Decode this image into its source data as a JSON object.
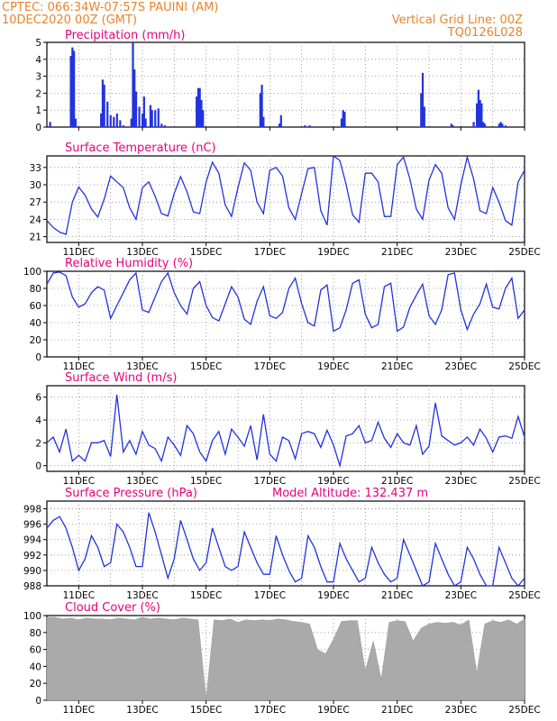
{
  "header": {
    "line1": "CPTEC:   066:34W-07:57S   PAUINI (AM)",
    "line2": "10DEC2020 00Z (GMT)",
    "right1": "Vertical Grid Line: 00Z",
    "right2": "TQ0126L028"
  },
  "model_altitude_label": "Model Altitude: 132.437 m",
  "x_axis": {
    "start_day": 10,
    "end_day": 25,
    "tick_days": [
      11,
      13,
      15,
      17,
      19,
      21,
      23,
      25
    ],
    "tick_labels": [
      "11DEC",
      "13DEC",
      "15DEC",
      "17DEC",
      "19DEC",
      "21DEC",
      "23DEC",
      "25DEC"
    ]
  },
  "colors": {
    "line": "#2233dd",
    "bar": "#2233dd",
    "cloud": "#aaaaaa",
    "header": "#e8832a",
    "title": "#e6007e"
  },
  "chart_data": [
    {
      "type": "bar",
      "title": "Precipitation (mm/h)",
      "ylim": [
        0,
        5
      ],
      "yticks": [
        0,
        1,
        2,
        3,
        4,
        5
      ],
      "x_days": [
        10.1,
        10.75,
        10.8,
        10.85,
        10.9,
        11.7,
        11.75,
        11.8,
        11.9,
        12.0,
        12.1,
        12.2,
        12.3,
        12.4,
        12.65,
        12.7,
        12.75,
        12.8,
        12.9,
        13.0,
        13.05,
        13.1,
        13.25,
        13.3,
        13.4,
        13.5,
        13.6,
        13.7,
        14.7,
        14.75,
        14.8,
        14.85,
        14.9,
        16.7,
        16.75,
        16.8,
        17.3,
        17.35,
        18.1,
        18.25,
        19.25,
        19.3,
        19.35,
        21.75,
        21.8,
        21.85,
        22.7,
        22.75,
        23.4,
        23.5,
        23.55,
        23.6,
        23.65,
        23.7,
        23.75,
        24.2,
        24.25,
        24.3,
        24.4
      ],
      "values": [
        0.3,
        4.2,
        4.7,
        4.5,
        0.5,
        0.8,
        2.8,
        2.5,
        1.5,
        0.7,
        0.6,
        0.8,
        0.4,
        0.1,
        0.5,
        5.0,
        3.4,
        2.1,
        1.2,
        0.8,
        1.8,
        0.5,
        1.3,
        1.0,
        1.0,
        1.1,
        0.2,
        0.1,
        1.8,
        2.3,
        2.3,
        1.6,
        1.0,
        2.0,
        2.5,
        0.6,
        0.2,
        0.7,
        0.1,
        0.1,
        0.5,
        1.0,
        0.9,
        2.0,
        3.2,
        1.2,
        0.2,
        0.1,
        0.3,
        1.4,
        2.2,
        1.6,
        1.4,
        0.3,
        0.2,
        0.2,
        0.3,
        0.2,
        0.1
      ]
    },
    {
      "type": "line",
      "title": "Surface Temperature (nC)",
      "ylim": [
        20,
        35
      ],
      "yticks": [
        21,
        24,
        27,
        30,
        33
      ],
      "x_days": [
        10.0,
        10.2,
        10.4,
        10.6,
        10.8,
        11.0,
        11.2,
        11.4,
        11.6,
        11.8,
        12.0,
        12.2,
        12.4,
        12.6,
        12.8,
        13.0,
        13.2,
        13.4,
        13.6,
        13.8,
        14.0,
        14.2,
        14.4,
        14.6,
        14.8,
        15.0,
        15.2,
        15.4,
        15.6,
        15.8,
        16.0,
        16.2,
        16.4,
        16.6,
        16.8,
        17.0,
        17.2,
        17.4,
        17.6,
        17.8,
        18.0,
        18.2,
        18.4,
        18.6,
        18.8,
        19.0,
        19.2,
        19.4,
        19.6,
        19.8,
        20.0,
        20.2,
        20.4,
        20.6,
        20.8,
        21.0,
        21.2,
        21.4,
        21.6,
        21.8,
        22.0,
        22.2,
        22.4,
        22.6,
        22.8,
        23.0,
        23.2,
        23.4,
        23.6,
        23.8,
        24.0,
        24.2,
        24.4,
        24.6,
        24.8,
        25.0
      ],
      "values": [
        23.8,
        22.6,
        21.8,
        21.4,
        27.0,
        29.6,
        28.2,
        25.8,
        24.4,
        27.5,
        31.5,
        30.5,
        29.5,
        26.0,
        24.0,
        29.5,
        30.5,
        28.0,
        25.0,
        24.6,
        28.5,
        31.4,
        28.8,
        25.3,
        25.0,
        30.5,
        33.9,
        32.0,
        26.5,
        24.5,
        29.5,
        33.8,
        32.5,
        27.0,
        25.0,
        32.5,
        33.0,
        31.5,
        26.0,
        24.0,
        28.5,
        32.8,
        33.0,
        25.5,
        23.0,
        35.0,
        34.2,
        30.0,
        24.8,
        23.5,
        32.0,
        32.0,
        30.5,
        24.5,
        24.5,
        33.5,
        34.8,
        31.0,
        25.8,
        24.0,
        30.8,
        33.5,
        32.0,
        26.0,
        24.0,
        30.0,
        34.8,
        31.0,
        25.5,
        25.0,
        29.5,
        27.0,
        23.8,
        23.0,
        30.5,
        32.5
      ]
    },
    {
      "type": "line",
      "title": "Relative Humidity (%)",
      "ylim": [
        0,
        100
      ],
      "yticks": [
        0,
        20,
        40,
        60,
        80,
        100
      ],
      "x_days": [
        10.0,
        10.2,
        10.4,
        10.6,
        10.8,
        11.0,
        11.2,
        11.4,
        11.6,
        11.8,
        12.0,
        12.2,
        12.4,
        12.6,
        12.8,
        13.0,
        13.2,
        13.4,
        13.6,
        13.8,
        14.0,
        14.2,
        14.4,
        14.6,
        14.8,
        15.0,
        15.2,
        15.4,
        15.6,
        15.8,
        16.0,
        16.2,
        16.4,
        16.6,
        16.8,
        17.0,
        17.2,
        17.4,
        17.6,
        17.8,
        18.0,
        18.2,
        18.4,
        18.6,
        18.8,
        19.0,
        19.2,
        19.4,
        19.6,
        19.8,
        20.0,
        20.2,
        20.4,
        20.6,
        20.8,
        21.0,
        21.2,
        21.4,
        21.6,
        21.8,
        22.0,
        22.2,
        22.4,
        22.6,
        22.8,
        23.0,
        23.2,
        23.4,
        23.6,
        23.8,
        24.0,
        24.2,
        24.4,
        24.6,
        24.8,
        25.0
      ],
      "values": [
        85,
        98,
        99,
        95,
        70,
        58,
        62,
        75,
        82,
        78,
        45,
        60,
        75,
        90,
        98,
        55,
        52,
        70,
        88,
        98,
        75,
        60,
        50,
        80,
        88,
        60,
        46,
        42,
        62,
        82,
        70,
        44,
        38,
        65,
        82,
        48,
        45,
        52,
        80,
        92,
        62,
        40,
        36,
        78,
        84,
        30,
        34,
        55,
        86,
        90,
        50,
        34,
        38,
        82,
        86,
        30,
        35,
        58,
        72,
        85,
        48,
        38,
        55,
        96,
        98,
        55,
        32,
        50,
        62,
        85,
        58,
        56,
        80,
        92,
        45,
        55
      ]
    },
    {
      "type": "line",
      "title": "Surface Wind (m/s)",
      "ylim": [
        -0.5,
        7
      ],
      "yticks": [
        0,
        2,
        4,
        6
      ],
      "x_days": [
        10.0,
        10.2,
        10.4,
        10.6,
        10.8,
        11.0,
        11.2,
        11.4,
        11.6,
        11.8,
        12.0,
        12.2,
        12.4,
        12.6,
        12.8,
        13.0,
        13.2,
        13.4,
        13.6,
        13.8,
        14.0,
        14.2,
        14.4,
        14.6,
        14.8,
        15.0,
        15.2,
        15.4,
        15.6,
        15.8,
        16.0,
        16.2,
        16.4,
        16.6,
        16.8,
        17.0,
        17.2,
        17.4,
        17.6,
        17.8,
        18.0,
        18.2,
        18.4,
        18.6,
        18.8,
        19.0,
        19.2,
        19.4,
        19.6,
        19.8,
        20.0,
        20.2,
        20.4,
        20.6,
        20.8,
        21.0,
        21.2,
        21.4,
        21.6,
        21.8,
        22.0,
        22.2,
        22.4,
        22.6,
        22.8,
        23.0,
        23.2,
        23.4,
        23.6,
        23.8,
        24.0,
        24.2,
        24.4,
        24.6,
        24.8,
        25.0
      ],
      "values": [
        2.0,
        2.5,
        1.2,
        3.2,
        0.4,
        0.9,
        0.4,
        2.0,
        2.0,
        2.2,
        0.8,
        6.2,
        1.2,
        2.2,
        1.0,
        3.0,
        1.8,
        1.5,
        0.4,
        2.5,
        1.8,
        0.9,
        3.5,
        2.8,
        1.2,
        0.4,
        2.2,
        3.0,
        1.0,
        3.2,
        2.5,
        1.7,
        3.5,
        0.5,
        4.5,
        1.0,
        0.4,
        2.5,
        2.2,
        0.6,
        2.8,
        3.0,
        2.8,
        1.6,
        3.1,
        1.8,
        0.0,
        2.6,
        2.8,
        3.5,
        2.0,
        2.2,
        3.8,
        2.4,
        1.6,
        2.8,
        2.0,
        1.8,
        3.5,
        1.0,
        1.7,
        5.5,
        2.6,
        2.2,
        1.8,
        2.0,
        2.5,
        1.8,
        3.2,
        2.4,
        1.2,
        2.5,
        2.6,
        2.4,
        4.3,
        2.5
      ]
    },
    {
      "type": "line",
      "title": "Surface Pressure (hPa)",
      "ylim": [
        988,
        999
      ],
      "yticks": [
        988,
        990,
        992,
        994,
        996,
        998
      ],
      "x_days": [
        10.0,
        10.2,
        10.4,
        10.6,
        10.8,
        11.0,
        11.2,
        11.4,
        11.6,
        11.8,
        12.0,
        12.2,
        12.4,
        12.6,
        12.8,
        13.0,
        13.2,
        13.4,
        13.6,
        13.8,
        14.0,
        14.2,
        14.4,
        14.6,
        14.8,
        15.0,
        15.2,
        15.4,
        15.6,
        15.8,
        16.0,
        16.2,
        16.4,
        16.6,
        16.8,
        17.0,
        17.2,
        17.4,
        17.6,
        17.8,
        18.0,
        18.2,
        18.4,
        18.6,
        18.8,
        19.0,
        19.2,
        19.4,
        19.6,
        19.8,
        20.0,
        20.2,
        20.4,
        20.6,
        20.8,
        21.0,
        21.2,
        21.4,
        21.6,
        21.8,
        22.0,
        22.2,
        22.4,
        22.6,
        22.8,
        23.0,
        23.2,
        23.4,
        23.6,
        23.8,
        24.0,
        24.2,
        24.4,
        24.6,
        24.8,
        25.0
      ],
      "values": [
        995.5,
        996.5,
        997.0,
        995.5,
        993.0,
        990.0,
        991.5,
        994.5,
        993.0,
        990.5,
        991.0,
        996.0,
        995.0,
        993.0,
        990.5,
        990.5,
        997.5,
        995.0,
        992.0,
        989.0,
        991.5,
        996.5,
        994.0,
        991.5,
        990.0,
        991.0,
        995.5,
        993.0,
        990.5,
        990.0,
        990.5,
        995.0,
        993.0,
        991.0,
        989.5,
        989.5,
        994.5,
        992.0,
        990.0,
        988.5,
        989.0,
        994.5,
        993.0,
        990.5,
        988.5,
        988.5,
        993.5,
        991.5,
        990.0,
        988.5,
        989.0,
        993.0,
        991.0,
        989.5,
        988.5,
        989.0,
        994.0,
        992.0,
        990.0,
        988.0,
        988.5,
        993.5,
        991.5,
        989.5,
        988.0,
        988.5,
        993.0,
        991.5,
        989.5,
        988.0,
        988.0,
        993.0,
        991.0,
        989.0,
        988.0,
        989.0
      ]
    },
    {
      "type": "area",
      "title": "Cloud Cover (%)",
      "ylim": [
        0,
        100
      ],
      "yticks": [
        0,
        20,
        40,
        60,
        80,
        100
      ],
      "x_days": [
        10.0,
        10.25,
        10.5,
        10.75,
        11.0,
        11.25,
        11.5,
        11.75,
        12.0,
        12.25,
        12.5,
        12.75,
        13.0,
        13.25,
        13.5,
        13.75,
        14.0,
        14.25,
        14.5,
        14.75,
        15.0,
        15.25,
        15.5,
        15.75,
        16.0,
        16.25,
        16.5,
        16.75,
        17.0,
        17.25,
        17.5,
        17.75,
        18.0,
        18.25,
        18.5,
        18.75,
        19.0,
        19.25,
        19.5,
        19.75,
        20.0,
        20.25,
        20.5,
        20.75,
        21.0,
        21.25,
        21.5,
        21.75,
        22.0,
        22.25,
        22.5,
        22.75,
        23.0,
        23.25,
        23.5,
        23.75,
        24.0,
        24.25,
        24.5,
        24.75,
        25.0
      ],
      "values": [
        98,
        98,
        96,
        97,
        95,
        97,
        96,
        96,
        95,
        97,
        96,
        95,
        98,
        96,
        97,
        96,
        95,
        97,
        96,
        95,
        2,
        95,
        94,
        96,
        92,
        95,
        94,
        95,
        94,
        96,
        95,
        93,
        92,
        90,
        60,
        55,
        72,
        93,
        94,
        94,
        35,
        70,
        25,
        92,
        94,
        93,
        70,
        85,
        90,
        92,
        91,
        92,
        89,
        95,
        32,
        90,
        94,
        92,
        95,
        90,
        96
      ]
    }
  ]
}
